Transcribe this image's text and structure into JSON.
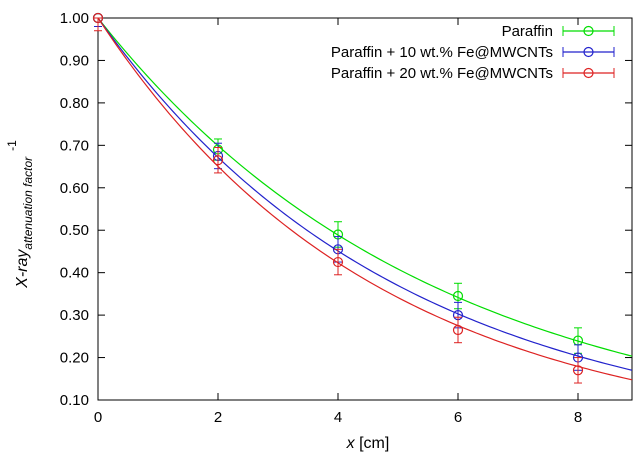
{
  "chart_data": {
    "type": "line",
    "title": "",
    "xlabel": {
      "var": "x",
      "unit": " [cm]"
    },
    "ylabel": {
      "main": "X-ray",
      "sub": "attenuation factor",
      "sup": "-1"
    },
    "xlim": [
      0,
      8.9
    ],
    "ylim": [
      0.1,
      1.0
    ],
    "xticks": [
      "0",
      "2",
      "4",
      "6",
      "8"
    ],
    "yticks": [
      "0.10",
      "0.20",
      "0.30",
      "0.40",
      "0.50",
      "0.60",
      "0.70",
      "0.80",
      "0.90",
      "1.00"
    ],
    "legend_position": "top-right",
    "grid": false,
    "series": [
      {
        "name": "Paraffin",
        "color": "#00dd00",
        "x": [
          0,
          2,
          4,
          6,
          8
        ],
        "y": [
          1.0,
          0.69,
          0.49,
          0.345,
          0.24
        ],
        "err": [
          0.02,
          0.025,
          0.03,
          0.03,
          0.03
        ],
        "fit_k": 0.179
      },
      {
        "name": "Paraffin + 10 wt.% Fe@MWCNTs",
        "color": "#2222cc",
        "x": [
          0,
          2,
          4,
          6,
          8
        ],
        "y": [
          1.0,
          0.675,
          0.455,
          0.3,
          0.2
        ],
        "err": [
          0.02,
          0.03,
          0.03,
          0.03,
          0.03
        ],
        "fit_k": 0.199
      },
      {
        "name": "Paraffin + 20 wt.% Fe@MWCNTs",
        "color": "#dd2222",
        "x": [
          0,
          2,
          4,
          6,
          8
        ],
        "y": [
          1.0,
          0.665,
          0.425,
          0.265,
          0.17
        ],
        "err": [
          0.03,
          0.03,
          0.03,
          0.03,
          0.03
        ],
        "fit_k": 0.215
      }
    ]
  }
}
